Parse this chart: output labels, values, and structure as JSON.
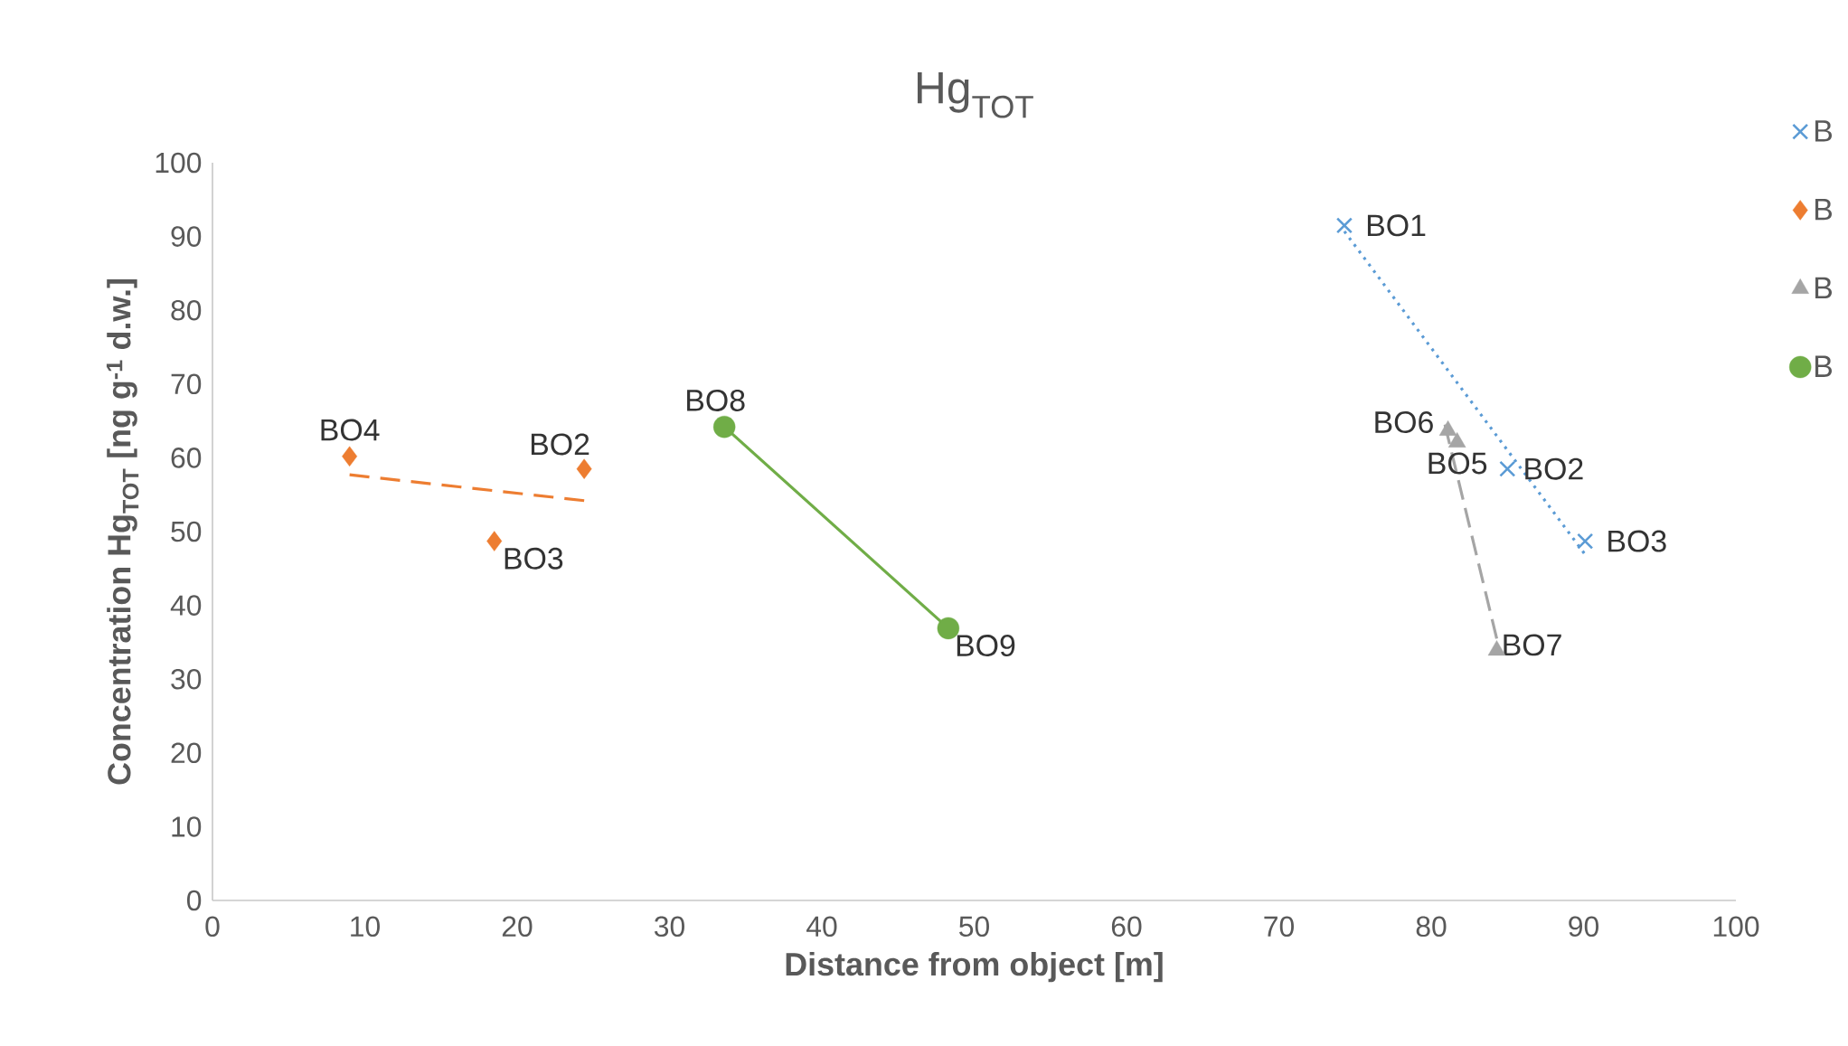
{
  "chart_data": {
    "type": "line",
    "title": "Hg$_{TOT}$",
    "xlabel": "Distance from object [m]",
    "ylabel": "Concentration Hg$_{TOT}$ [ng g$^{-1}$ d.w.]",
    "xlim": [
      0,
      100
    ],
    "ylim": [
      0,
      100
    ],
    "xticks": [
      0,
      10,
      20,
      30,
      40,
      50,
      60,
      70,
      80,
      90,
      100
    ],
    "yticks": [
      0,
      10,
      20,
      30,
      40,
      50,
      60,
      70,
      80,
      90,
      100
    ],
    "grid": false,
    "legend": "right",
    "series": [
      {
        "name": "B",
        "type": "scatter",
        "marker": "cross",
        "color": "#5b9bd5",
        "x": [
          74.3,
          85.0,
          90.1
        ],
        "values": [
          91.5,
          58.5,
          48.7
        ]
      },
      {
        "name": "B",
        "type": "scatter",
        "marker": "diamond",
        "color": "#ed7d31",
        "x": [
          9.0,
          18.5,
          24.4
        ],
        "values": [
          60.2,
          48.7,
          58.5
        ]
      },
      {
        "name": "B",
        "type": "scatter",
        "marker": "triangle",
        "color": "#a5a5a5",
        "x": [
          81.1,
          81.7,
          84.3
        ],
        "values": [
          63.7,
          62.1,
          33.9
        ]
      },
      {
        "name": "B",
        "type": "scatter",
        "marker": "circle",
        "color": "#70ad47",
        "x": [
          33.6,
          48.3
        ],
        "values": [
          64.2,
          36.9
        ]
      },
      {
        "type": "line",
        "line_style": "dotted",
        "marker": "none",
        "color": "#5b9bd5",
        "x": [
          74.3,
          90.1
        ],
        "values": [
          90.7,
          46.9
        ]
      },
      {
        "type": "line",
        "line_style": "dashed",
        "marker": "none",
        "color": "#ed7d31",
        "x": [
          9.0,
          24.4
        ],
        "values": [
          57.7,
          54.2
        ]
      },
      {
        "type": "line",
        "line_style": "dashed",
        "marker": "none",
        "color": "#a5a5a5",
        "x": [
          80.9,
          84.3
        ],
        "values": [
          64.5,
          35.5
        ]
      },
      {
        "line_style": "solid",
        "marker": "none",
        "color": "#70ad47",
        "x": [
          33.6,
          48.3
        ],
        "values": [
          64.2,
          36.9
        ]
      }
    ],
    "annotations": [
      {
        "text": "BO4",
        "x": 9.0,
        "y": 60.2
      },
      {
        "text": "BO3",
        "x": 18.5,
        "y": 48.7
      },
      {
        "text": "BO2",
        "x": 24.4,
        "y": 58.5
      },
      {
        "text": "BO8",
        "x": 33.6,
        "y": 64.2
      },
      {
        "text": "BO9",
        "x": 48.3,
        "y": 36.9
      },
      {
        "text": "BO1",
        "x": 74.3,
        "y": 91.5
      },
      {
        "text": "BO2",
        "x": 85.0,
        "y": 58.5
      },
      {
        "text": "BO3",
        "x": 90.1,
        "y": 48.7
      },
      {
        "text": "BO6",
        "x": 81.1,
        "y": 63.7
      },
      {
        "text": "BO5",
        "x": 81.7,
        "y": 62.1
      },
      {
        "text": "BO7",
        "x": 84.3,
        "y": 33.9
      }
    ]
  }
}
